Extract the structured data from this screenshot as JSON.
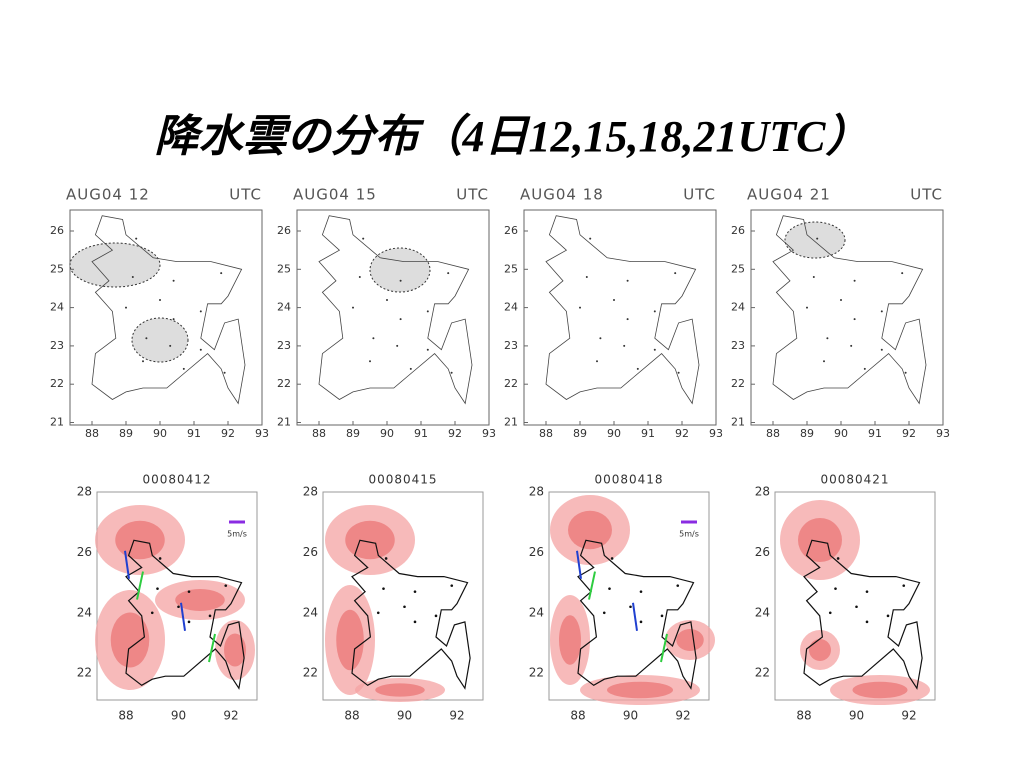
{
  "title": "降水雲の分布（4日12,15,18,21UTC）",
  "top_panels": [
    {
      "title": "AUG04  12",
      "unit": "UTC",
      "yticks": [
        26,
        25,
        24,
        23,
        22,
        21
      ],
      "xticks": [
        88,
        89,
        90,
        91,
        92,
        93
      ]
    },
    {
      "title": "AUG04  15",
      "unit": "UTC",
      "yticks": [
        26,
        25,
        24,
        23,
        22,
        21
      ],
      "xticks": [
        88,
        89,
        90,
        91,
        92,
        93
      ]
    },
    {
      "title": "AUG04  18",
      "unit": "UTC",
      "yticks": [
        26,
        25,
        24,
        23,
        22,
        21
      ],
      "xticks": [
        88,
        89,
        90,
        91,
        92,
        93
      ]
    },
    {
      "title": "AUG04  21",
      "unit": "UTC",
      "yticks": [
        26,
        25,
        24,
        23,
        22,
        21
      ],
      "xticks": [
        88,
        89,
        90,
        91,
        92,
        93
      ]
    }
  ],
  "bottom_panels": [
    {
      "title": "00080412",
      "legend": "5m/s",
      "yticks": [
        28,
        26,
        24,
        22
      ],
      "xticks": [
        88,
        90,
        92
      ]
    },
    {
      "title": "00080415",
      "yticks": [
        28,
        26,
        24,
        22
      ],
      "xticks": [
        88,
        90,
        92
      ]
    },
    {
      "title": "00080418",
      "legend": "5m/s",
      "yticks": [
        28,
        26,
        24,
        22
      ],
      "xticks": [
        88,
        90,
        92
      ]
    },
    {
      "title": "00080421",
      "yticks": [
        28,
        26,
        24,
        22
      ],
      "xticks": [
        88,
        90,
        92
      ]
    }
  ]
}
